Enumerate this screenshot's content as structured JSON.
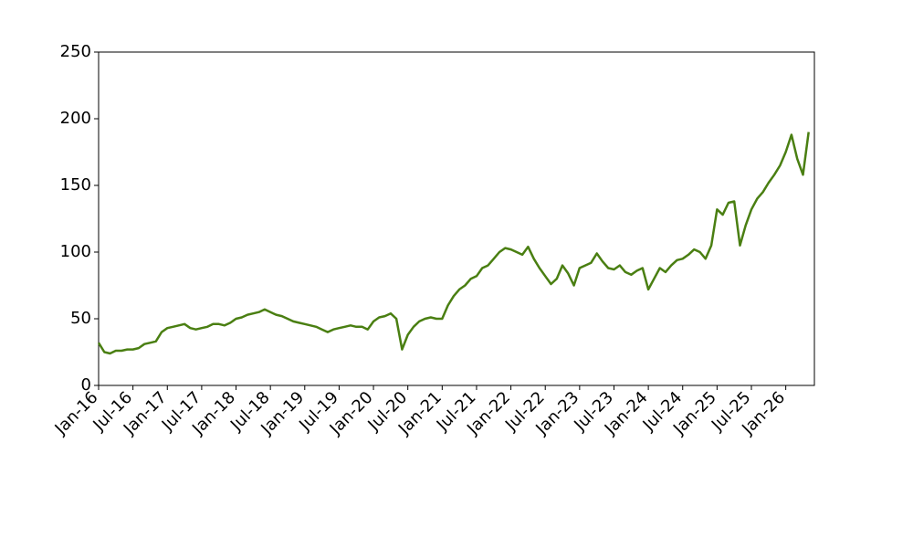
{
  "chart_data": {
    "type": "line",
    "x": [
      "2016-01",
      "2016-02",
      "2016-03",
      "2016-04",
      "2016-05",
      "2016-06",
      "2016-07",
      "2016-08",
      "2016-09",
      "2016-10",
      "2016-11",
      "2016-12",
      "2017-01",
      "2017-02",
      "2017-03",
      "2017-04",
      "2017-05",
      "2017-06",
      "2017-07",
      "2017-08",
      "2017-09",
      "2017-10",
      "2017-11",
      "2017-12",
      "2018-01",
      "2018-02",
      "2018-03",
      "2018-04",
      "2018-05",
      "2018-06",
      "2018-07",
      "2018-08",
      "2018-09",
      "2018-10",
      "2018-11",
      "2018-12",
      "2019-01",
      "2019-02",
      "2019-03",
      "2019-04",
      "2019-05",
      "2019-06",
      "2019-07",
      "2019-08",
      "2019-09",
      "2019-10",
      "2019-11",
      "2019-12",
      "2020-01",
      "2020-02",
      "2020-03",
      "2020-04",
      "2020-05",
      "2020-06",
      "2020-07",
      "2020-08",
      "2020-09",
      "2020-10",
      "2020-11",
      "2020-12",
      "2021-01",
      "2021-02",
      "2021-03",
      "2021-04",
      "2021-05",
      "2021-06",
      "2021-07",
      "2021-08",
      "2021-09",
      "2021-10",
      "2021-11",
      "2021-12",
      "2022-01",
      "2022-02",
      "2022-03",
      "2022-04",
      "2022-05",
      "2022-06",
      "2022-07",
      "2022-08",
      "2022-09",
      "2022-10",
      "2022-11",
      "2022-12",
      "2023-01",
      "2023-02",
      "2023-03",
      "2023-04",
      "2023-05",
      "2023-06",
      "2023-07",
      "2023-08",
      "2023-09",
      "2023-10",
      "2023-11",
      "2023-12",
      "2024-01",
      "2024-02",
      "2024-03",
      "2024-04",
      "2024-05",
      "2024-06",
      "2024-07",
      "2024-08",
      "2024-09",
      "2024-10",
      "2024-11",
      "2024-12",
      "2025-01",
      "2025-02",
      "2025-03",
      "2025-04",
      "2025-05",
      "2025-06",
      "2025-07",
      "2025-08",
      "2025-09",
      "2025-10",
      "2025-11",
      "2025-12",
      "2026-01",
      "2026-02",
      "2026-03",
      "2026-04",
      "2026-05"
    ],
    "series": [
      {
        "color": "#4a7f12",
        "values": [
          32,
          25,
          24,
          26,
          26,
          27,
          27,
          28,
          31,
          32,
          33,
          40,
          43,
          44,
          45,
          46,
          43,
          42,
          43,
          44,
          46,
          46,
          45,
          47,
          50,
          51,
          53,
          54,
          55,
          57,
          55,
          53,
          52,
          50,
          48,
          47,
          46,
          45,
          44,
          42,
          40,
          42,
          43,
          44,
          45,
          44,
          44,
          42,
          48,
          51,
          52,
          54,
          50,
          27,
          38,
          44,
          48,
          50,
          51,
          50,
          50,
          60,
          67,
          72,
          75,
          80,
          82,
          88,
          90,
          95,
          100,
          103,
          102,
          100,
          98,
          104,
          95,
          88,
          82,
          76,
          80,
          90,
          84,
          75,
          88,
          90,
          92,
          99,
          93,
          88,
          87,
          90,
          85,
          83,
          86,
          88,
          72,
          80,
          88,
          85,
          90,
          94,
          95,
          98,
          102,
          100,
          95,
          105,
          132,
          128,
          137,
          138,
          105,
          120,
          132,
          140,
          145,
          152,
          158,
          165,
          175,
          188,
          170,
          158,
          190
        ]
      }
    ],
    "xlim": [
      "2016-01",
      "2026-06"
    ],
    "xticks": [
      {
        "value": "2016-01",
        "label": "Jan-16"
      },
      {
        "value": "2016-07",
        "label": "Jul-16"
      },
      {
        "value": "2017-01",
        "label": "Jan-17"
      },
      {
        "value": "2017-07",
        "label": "Jul-17"
      },
      {
        "value": "2018-01",
        "label": "Jan-18"
      },
      {
        "value": "2018-07",
        "label": "Jul-18"
      },
      {
        "value": "2019-01",
        "label": "Jan-19"
      },
      {
        "value": "2019-07",
        "label": "Jul-19"
      },
      {
        "value": "2020-01",
        "label": "Jan-20"
      },
      {
        "value": "2020-07",
        "label": "Jul-20"
      },
      {
        "value": "2021-01",
        "label": "Jan-21"
      },
      {
        "value": "2021-07",
        "label": "Jul-21"
      },
      {
        "value": "2022-01",
        "label": "Jan-22"
      },
      {
        "value": "2022-07",
        "label": "Jul-22"
      },
      {
        "value": "2023-01",
        "label": "Jan-23"
      },
      {
        "value": "2023-07",
        "label": "Jul-23"
      },
      {
        "value": "2024-01",
        "label": "Jan-24"
      },
      {
        "value": "2024-07",
        "label": "Jul-24"
      },
      {
        "value": "2025-01",
        "label": "Jan-25"
      },
      {
        "value": "2025-07",
        "label": "Jul-25"
      },
      {
        "value": "2026-01",
        "label": "Jan-26"
      }
    ],
    "ylim": [
      0,
      250
    ],
    "yticks": [
      0,
      50,
      100,
      150,
      200,
      250
    ],
    "grid": false
  }
}
